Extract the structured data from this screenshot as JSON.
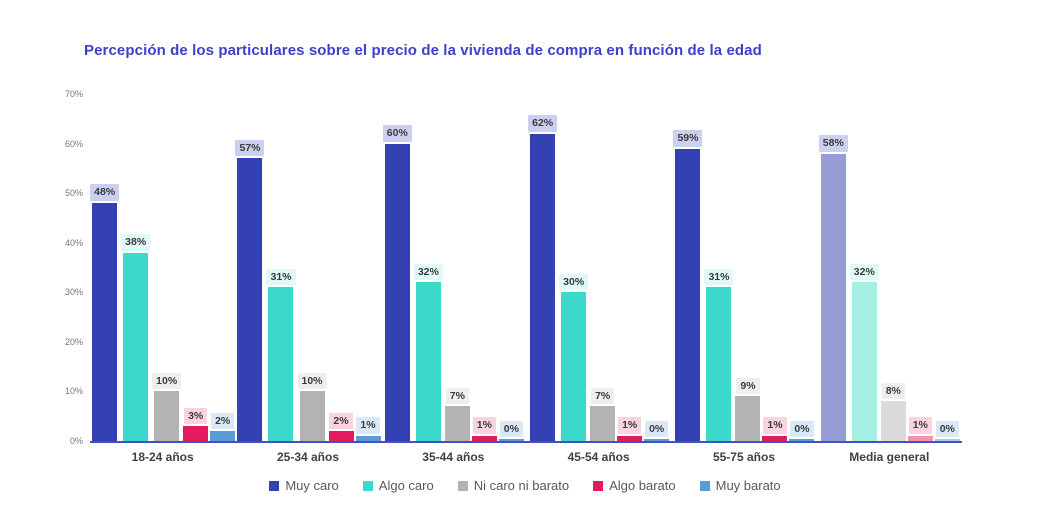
{
  "title": "Percepción de los particulares sobre el precio de la vivienda de compra en función de la edad",
  "chart_data": {
    "type": "bar",
    "title": "Percepción de los particulares sobre el precio de la vivienda de compra en función de la edad",
    "categories": [
      "18-24 años",
      "25-34 años",
      "35-44 años",
      "45-54 años",
      "55-75 años",
      "Media general"
    ],
    "series": [
      {
        "name": "Muy caro",
        "color": "#3441b2",
        "faded_color": "#969cd6",
        "label_bg": "#ccd0f0",
        "values": [
          48,
          57,
          60,
          62,
          59,
          58
        ]
      },
      {
        "name": "Algo caro",
        "color": "#3bd9cb",
        "faded_color": "#a6eee4",
        "label_bg": "#e0f9f6",
        "values": [
          38,
          31,
          32,
          30,
          31,
          32
        ]
      },
      {
        "name": "Ni caro ni barato",
        "color": "#b3b3b3",
        "faded_color": "#dbdbdb",
        "label_bg": "#eeeeee",
        "values": [
          10,
          10,
          7,
          7,
          9,
          8
        ]
      },
      {
        "name": "Algo barato",
        "color": "#e21a5f",
        "faded_color": "#f392b1",
        "label_bg": "#fad2e1",
        "values": [
          3,
          2,
          1,
          1,
          1,
          1
        ]
      },
      {
        "name": "Muy barato",
        "color": "#5b9bd5",
        "faded_color": "#a8cbec",
        "label_bg": "#dae8f7",
        "values": [
          2,
          1,
          0,
          0,
          0,
          0
        ]
      }
    ],
    "value_suffix": "%",
    "yticks": [
      0,
      10,
      20,
      30,
      40,
      50,
      60,
      70
    ],
    "ytick_suffix": "%",
    "ylim": [
      0,
      70
    ],
    "grid": false,
    "legend_position": "bottom",
    "faded_category": "Media general",
    "axis_color": "#4150c4"
  }
}
